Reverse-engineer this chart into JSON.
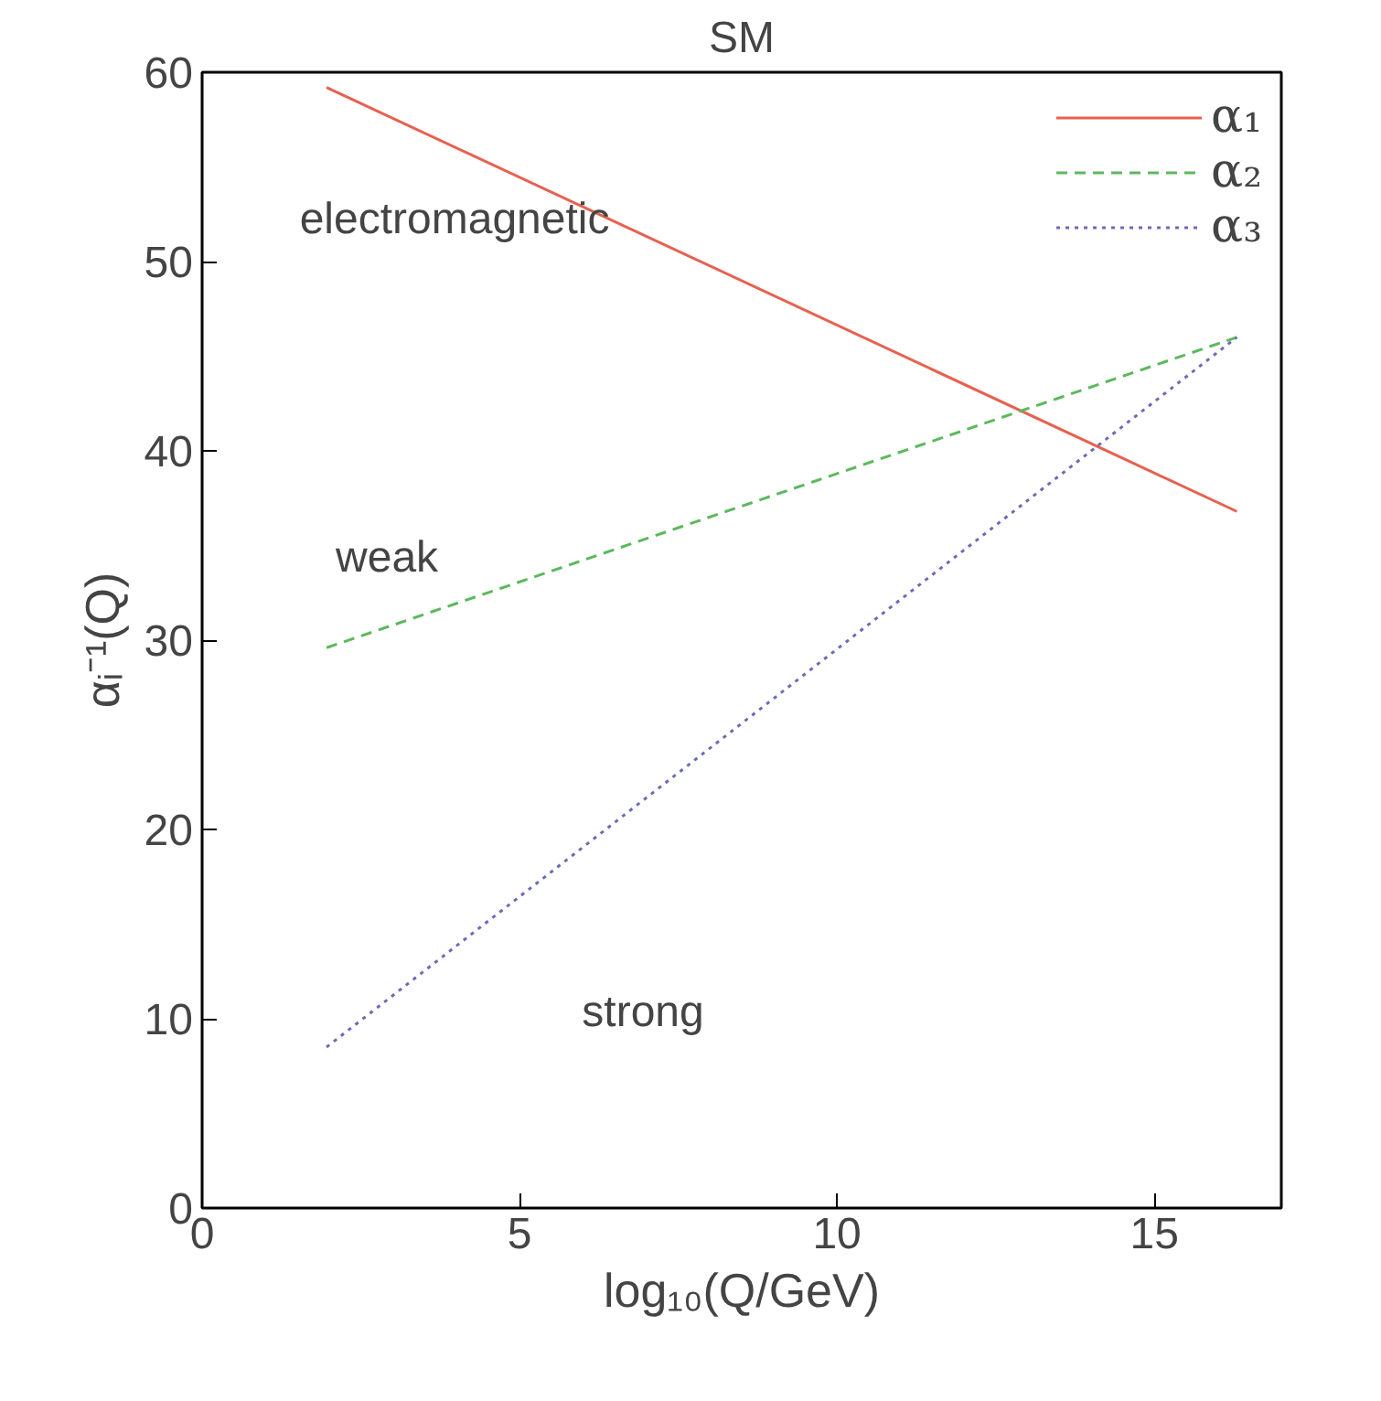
{
  "chart_data": {
    "type": "line",
    "title": "SM",
    "xlabel": "log₁₀(Q/GeV)",
    "ylabel": "αᵢ⁻¹(Q)",
    "xlim": [
      0,
      17
    ],
    "ylim": [
      0,
      60
    ],
    "xticks": [
      0,
      5,
      10,
      15
    ],
    "yticks": [
      0,
      10,
      20,
      30,
      40,
      50,
      60
    ],
    "grid": false,
    "legend": "top right",
    "marker": "none",
    "x": [
      1.96,
      16.3
    ],
    "series": [
      {
        "name": "α₁",
        "color": "#e8604f",
        "line_style": "solid",
        "values": [
          59.2,
          36.8
        ]
      },
      {
        "name": "α₂",
        "color": "#5cb85c",
        "line_style": "dashed",
        "values": [
          29.6,
          46.0
        ]
      },
      {
        "name": "α₃",
        "color": "#6b6bb5",
        "line_style": "dotted",
        "values": [
          8.5,
          46.0
        ]
      }
    ],
    "annotations": [
      "electromagnetic",
      "weak",
      "strong"
    ]
  }
}
